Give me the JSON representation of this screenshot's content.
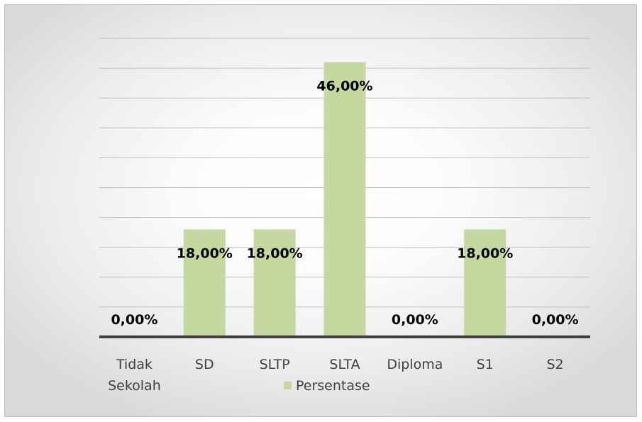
{
  "chart_data": {
    "type": "bar",
    "categories": [
      "Tidak Sekolah",
      "SD",
      "SLTP",
      "SLTA",
      "Diploma",
      "S1",
      "S2"
    ],
    "category_lines": [
      [
        "Tidak",
        "Sekolah"
      ],
      [
        "SD"
      ],
      [
        "SLTP"
      ],
      [
        "SLTA"
      ],
      [
        "Diploma"
      ],
      [
        "S1"
      ],
      [
        "S2"
      ]
    ],
    "series": [
      {
        "name": "Persentase",
        "values": [
          0,
          18,
          18,
          46,
          0,
          18,
          0
        ],
        "labels": [
          "0,00%",
          "18,00%",
          "18,00%",
          "46,00%",
          "0,00%",
          "18,00%",
          "0,00%"
        ]
      }
    ],
    "title": "",
    "xlabel": "",
    "ylabel": "",
    "ylim": [
      0,
      50
    ],
    "gridlines_major_step": 5,
    "grid": true,
    "legend": "bottom",
    "bar_color": "#c5d8a0",
    "axis_color": "#404040",
    "grid_color": "#bfbfbf"
  }
}
